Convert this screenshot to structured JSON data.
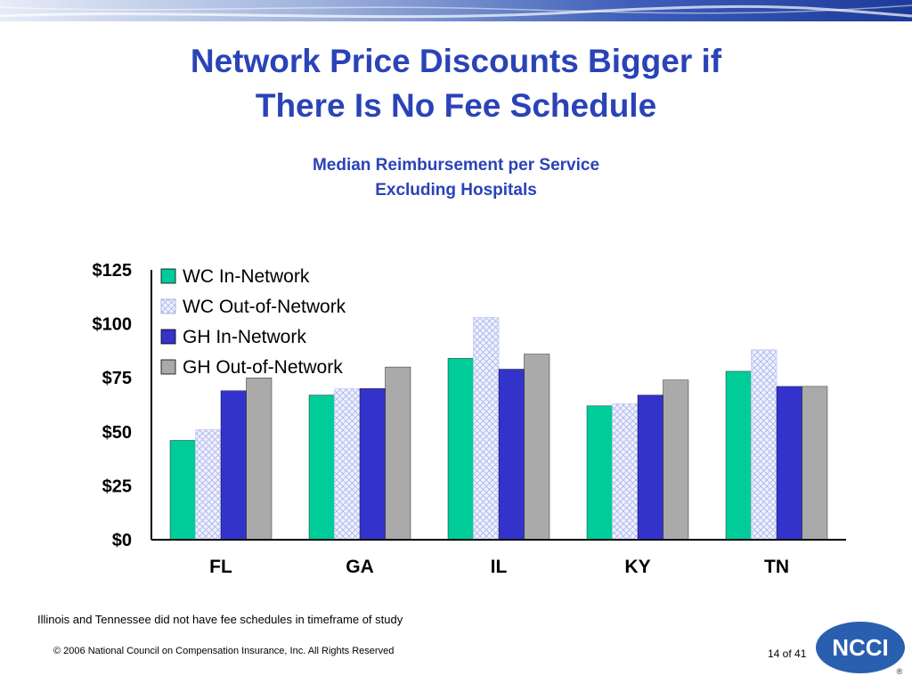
{
  "slide": {
    "title_line1": "Network Price Discounts Bigger if",
    "title_line2": "There Is No Fee Schedule",
    "subtitle_line1": "Median Reimbursement per Service",
    "subtitle_line2": "Excluding Hospitals",
    "note": "Illinois and Tennessee did not have fee schedules in timeframe of study",
    "copyright": "© 2006 National Council on Compensation Insurance, Inc. All Rights Reserved",
    "page": "14 of 41",
    "logo_text": "NCCI",
    "logo_mark": "®"
  },
  "chart_data": {
    "type": "bar",
    "categories": [
      "FL",
      "GA",
      "IL",
      "KY",
      "TN"
    ],
    "series": [
      {
        "name": "WC In-Network",
        "values": [
          46,
          67,
          84,
          62,
          78
        ],
        "color": "#00cc99",
        "pattern": "solid"
      },
      {
        "name": "WC Out-of-Network",
        "values": [
          51,
          70,
          103,
          63,
          88
        ],
        "color": "#e8ecff",
        "pattern": "crosshatch"
      },
      {
        "name": "GH In-Network",
        "values": [
          69,
          70,
          79,
          67,
          71
        ],
        "color": "#3333cc",
        "pattern": "solid"
      },
      {
        "name": "GH Out-of-Network",
        "values": [
          75,
          80,
          86,
          74,
          71
        ],
        "color": "#aaaaaa",
        "pattern": "solid"
      }
    ],
    "y_ticks": [
      "$0",
      "$25",
      "$50",
      "$75",
      "$100",
      "$125"
    ],
    "y_tick_values": [
      0,
      25,
      50,
      75,
      100,
      125
    ],
    "ylim": [
      0,
      125
    ],
    "grid": false,
    "legend_position": "top-left"
  }
}
